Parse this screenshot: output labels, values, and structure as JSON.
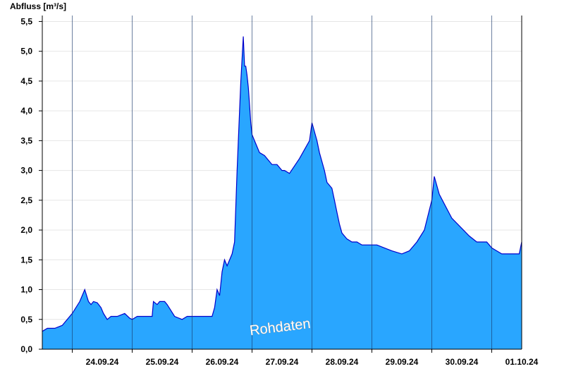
{
  "chart_data": {
    "type": "area",
    "title": "",
    "ylabel": "Abfluss [m³/s]",
    "xlabel": "",
    "watermark": "Rohdaten",
    "x_range": [
      "2024-09-23T12:00",
      "2024-10-01T12:00"
    ],
    "ylim": [
      0,
      5.6
    ],
    "y_ticks": [
      0,
      0.5,
      1.0,
      1.5,
      2.0,
      2.5,
      3.0,
      3.5,
      4.0,
      4.5,
      5.0,
      5.5
    ],
    "y_tick_labels": [
      "0,0",
      "0,5",
      "1,0",
      "1,5",
      "2,0",
      "2,5",
      "3,0",
      "3,5",
      "4,0",
      "4,5",
      "5,0",
      "5,5"
    ],
    "day_boundaries": [
      "2024-09-24T00:00",
      "2024-09-25T00:00",
      "2024-09-26T00:00",
      "2024-09-27T00:00",
      "2024-09-28T00:00",
      "2024-09-29T00:00",
      "2024-09-30T00:00",
      "2024-10-01T00:00"
    ],
    "x_tick_labels": [
      "24.09.24",
      "25.09.24",
      "26.09.24",
      "27.09.24",
      "28.09.24",
      "29.09.24",
      "30.09.24",
      "01.10.24"
    ],
    "grid": true,
    "colors": {
      "fill": "#29a6ff",
      "line": "#0000cc",
      "grid": "#e6e6e6",
      "day_line": "#1a3a6b"
    },
    "series": [
      {
        "x": [
          "2024-09-23T12:00",
          "2024-09-23T14:00",
          "2024-09-23T17:00",
          "2024-09-23T20:00",
          "2024-09-24T00:00",
          "2024-09-24T03:00",
          "2024-09-24T05:00",
          "2024-09-24T06:30",
          "2024-09-24T07:30",
          "2024-09-24T08:30",
          "2024-09-24T10:00",
          "2024-09-24T11:30",
          "2024-09-24T12:30",
          "2024-09-24T14:00",
          "2024-09-24T15:30",
          "2024-09-24T18:00",
          "2024-09-24T21:00",
          "2024-09-24T23:00",
          "2024-09-25T00:00",
          "2024-09-25T02:00",
          "2024-09-25T05:00",
          "2024-09-25T08:00",
          "2024-09-25T08:30",
          "2024-09-25T10:00",
          "2024-09-25T11:00",
          "2024-09-25T11:30",
          "2024-09-25T13:00",
          "2024-09-25T14:00",
          "2024-09-25T17:00",
          "2024-09-25T20:00",
          "2024-09-25T22:00",
          "2024-09-25T23:00",
          "2024-09-26T00:00",
          "2024-09-26T04:00",
          "2024-09-26T08:00",
          "2024-09-26T09:00",
          "2024-09-26T10:00",
          "2024-09-26T11:00",
          "2024-09-26T12:00",
          "2024-09-26T13:00",
          "2024-09-26T14:00",
          "2024-09-26T16:00",
          "2024-09-26T17:00",
          "2024-09-26T18:00",
          "2024-09-26T19:00",
          "2024-09-26T19:30",
          "2024-09-26T20:30",
          "2024-09-26T21:00",
          "2024-09-26T21:30",
          "2024-09-26T22:00",
          "2024-09-26T22:30",
          "2024-09-26T23:00",
          "2024-09-26T23:30",
          "2024-09-27T00:00",
          "2024-09-27T01:00",
          "2024-09-27T03:00",
          "2024-09-27T05:00",
          "2024-09-27T08:00",
          "2024-09-27T10:00",
          "2024-09-27T12:00",
          "2024-09-27T13:00",
          "2024-09-27T15:00",
          "2024-09-27T19:00",
          "2024-09-27T23:00",
          "2024-09-28T00:00",
          "2024-09-28T02:00",
          "2024-09-28T03:00",
          "2024-09-28T05:00",
          "2024-09-28T06:00",
          "2024-09-28T08:00",
          "2024-09-28T09:00",
          "2024-09-28T10:00",
          "2024-09-28T11:00",
          "2024-09-28T12:00",
          "2024-09-28T14:00",
          "2024-09-28T16:00",
          "2024-09-28T18:00",
          "2024-09-28T20:00",
          "2024-09-29T00:00",
          "2024-09-29T02:00",
          "2024-09-29T05:00",
          "2024-09-29T08:00",
          "2024-09-29T12:00",
          "2024-09-29T15:00",
          "2024-09-29T18:00",
          "2024-09-29T21:00",
          "2024-09-30T00:00",
          "2024-09-30T01:00",
          "2024-09-30T03:00",
          "2024-09-30T08:00",
          "2024-09-30T15:00",
          "2024-09-30T18:00",
          "2024-09-30T22:00",
          "2024-09-30T23:00",
          "2024-10-01T00:00",
          "2024-10-01T02:00",
          "2024-10-01T04:00",
          "2024-10-01T06:00",
          "2024-10-01T07:00",
          "2024-10-01T08:00",
          "2024-10-01T09:00",
          "2024-10-01T10:00",
          "2024-10-01T11:00",
          "2024-10-01T12:00"
        ],
        "values": [
          0.3,
          0.35,
          0.35,
          0.4,
          0.6,
          0.8,
          1.0,
          0.8,
          0.75,
          0.8,
          0.78,
          0.7,
          0.6,
          0.5,
          0.55,
          0.55,
          0.6,
          0.52,
          0.5,
          0.55,
          0.55,
          0.55,
          0.8,
          0.75,
          0.8,
          0.8,
          0.8,
          0.75,
          0.55,
          0.5,
          0.55,
          0.55,
          0.55,
          0.55,
          0.55,
          0.7,
          1.0,
          0.9,
          1.3,
          1.5,
          1.4,
          1.6,
          1.8,
          3.0,
          4.0,
          4.5,
          5.25,
          4.75,
          4.75,
          4.6,
          4.4,
          4.1,
          3.8,
          3.6,
          3.5,
          3.3,
          3.25,
          3.1,
          3.1,
          3.0,
          3.0,
          2.95,
          3.2,
          3.5,
          3.8,
          3.5,
          3.3,
          3.0,
          2.8,
          2.7,
          2.5,
          2.3,
          2.1,
          1.95,
          1.85,
          1.8,
          1.8,
          1.75,
          1.75,
          1.75,
          1.7,
          1.65,
          1.6,
          1.65,
          1.8,
          2.0,
          2.5,
          2.9,
          2.6,
          2.2,
          1.9,
          1.8,
          1.8,
          1.75,
          1.7,
          1.65,
          1.6,
          1.6,
          1.6,
          1.6,
          1.6,
          1.6,
          1.6,
          1.8
        ]
      }
    ]
  }
}
